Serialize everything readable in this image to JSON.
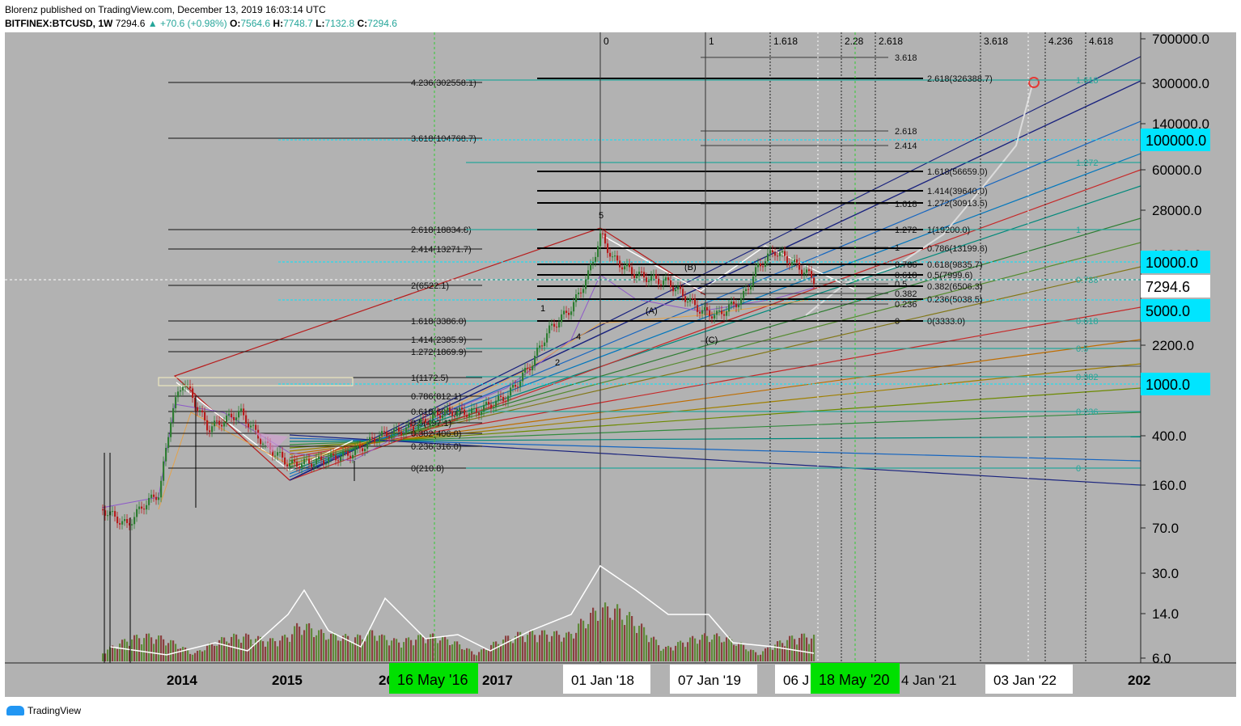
{
  "header": {
    "publisher": "Blorenz published on TradingView.com, December 13, 2019 16:03:14 UTC",
    "symbol": "BITFINEX:BTCUSD, 1W",
    "last": "7294.6",
    "change": "▲ +70.6 (+0.98%)",
    "o_label": "O:",
    "o": "7564.6",
    "h_label": "H:",
    "h": "7748.7",
    "l_label": "L:",
    "l": "7132.8",
    "c_label": "C:",
    "c": "7294.6"
  },
  "footer": {
    "brand": "TradingView"
  },
  "colors": {
    "background": "#b2b2b2",
    "up_candle": "#2e7d32",
    "down_candle": "#b71c1c",
    "cyan_label": "#00e5ff",
    "green_label": "#00e000",
    "fib_teal": "#26a69a"
  },
  "chart_data": {
    "type": "candlestick",
    "log_scale": true,
    "y_ticks": [
      "700000.0",
      "300000.0",
      "140000.0",
      "60000.0",
      "28000.0",
      "2200.0",
      "400.0",
      "160.0",
      "70.0",
      "30.0",
      "14.0",
      "6.0"
    ],
    "y_ticks_partial": "10000.0",
    "y_highlight_labels": [
      "100000.0",
      "10000.0",
      "5000.0",
      "1000.0"
    ],
    "current_price_label": "7294.6",
    "x_labels": [
      "2014",
      "2015",
      "20",
      "2017",
      "01 Jan '18",
      "07 Jan '19",
      "06 J",
      "4 Jan '21",
      "03 Jan '22",
      "202"
    ],
    "x_highlight_labels": [
      "16 May '16",
      "18 May '20"
    ],
    "time_fib_labels": [
      "0",
      "1",
      "1.618",
      "2.28",
      "2.618",
      "3.618",
      "4.236",
      "4.618"
    ],
    "fib_extension_left": [
      "4.236(302558.1)",
      "3.618(104768.7)",
      "2.618(18834.8)",
      "2.414(13271.7)",
      "2(6522.1)",
      "1.618(3386.0)",
      "1.414(2385.9)",
      "1.272(1869.9)",
      "1(1172.5)",
      "0.786(812.1)",
      "0.618(608.7)",
      "0.5(497.1)",
      "0.382(406.0)",
      "0.236(316.0)",
      "0(210.8)"
    ],
    "fib_extension_right": [
      "2.618(326388.7)",
      "1.618(56659.0)",
      "1.414(39640.0)",
      "1.272(30913.5)",
      "1(19200.0)",
      "0.786(13199.6)",
      "0.618(9835.7)",
      "0.5(7999.6)",
      "0.382(6506.3)",
      "0.236(5038.5)",
      "0(3333.0)"
    ],
    "fib_upper_small": [
      "3.618",
      "2.618",
      "2.414",
      "1.618",
      "1.272",
      "1",
      "0.786",
      "0.618",
      "0.5",
      "0.382",
      "0.236",
      "0"
    ],
    "fib_teal_right": [
      "1.618",
      "1.272",
      "1",
      "0.786",
      "0.618",
      "0.5",
      "0.382",
      "0.236",
      "0"
    ],
    "wave_labels": [
      "5",
      "1",
      "2",
      "4",
      "(A)",
      "(B)",
      "(C)"
    ]
  }
}
